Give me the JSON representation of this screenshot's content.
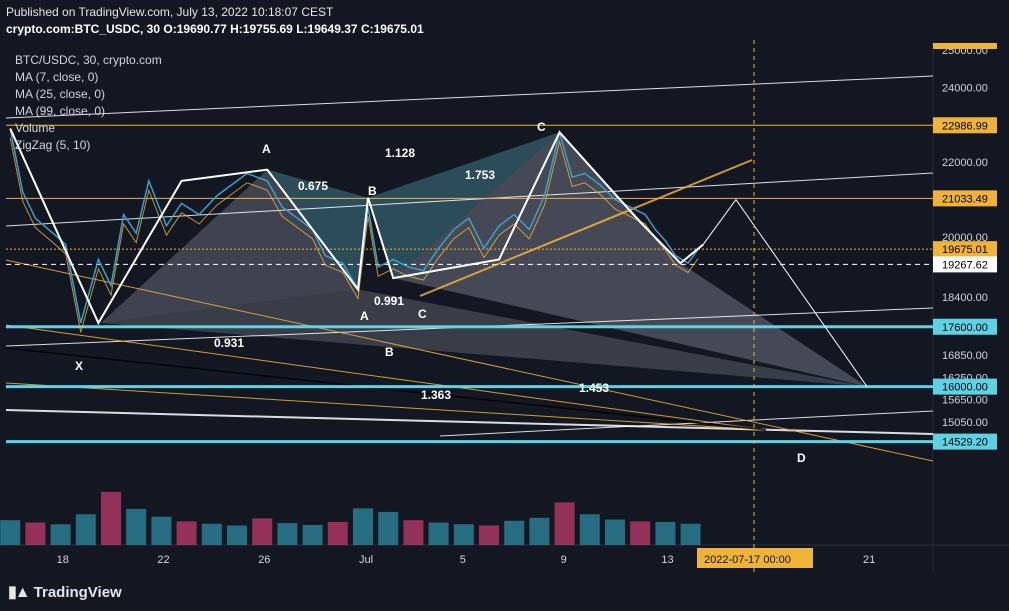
{
  "header": {
    "published": "Published on TradingView.com, July 13, 2022 10:18:07 CEST",
    "symbol_line_prefix": "crypto.com:BTC_USDC, 30",
    "ohlc": {
      "O": "19690.77",
      "H": "19755.69",
      "L": "19649.37",
      "C": "19675.01"
    }
  },
  "legend": {
    "title": "BTC/USDC, 30, crypto.com",
    "items": [
      "MA (7, close, 0)",
      "MA (25, close, 0)",
      "MA (99, close, 0)",
      "Volume",
      "ZigZag (5, 10)"
    ]
  },
  "footer": {
    "brand": "TradingView"
  },
  "colors": {
    "background": "#131722",
    "hline_orange": "#f0b33a",
    "hline_cyan": "#5ed1e5",
    "pattern_teal": "#3f7a86",
    "pattern_grey": "#8e95a3",
    "vol_up": "#2e8ba3",
    "vol_down": "#c23b6b",
    "date_label_bg": "#f0b33a"
  },
  "chart_data": {
    "type": "line",
    "title": "BTC/USDC, 30, crypto.com",
    "ylim": [
      14300,
      25300
    ],
    "price_axis_ticks": [
      25000,
      24000,
      22000,
      20000,
      18400,
      16850,
      16250,
      15650,
      15050
    ],
    "price_axis_labels": [
      "25000.00",
      "24000.00",
      "22000.00",
      "20000.00",
      "18400.00",
      "16850.00",
      "16250.00",
      "15650.00",
      "15050.00"
    ],
    "time_axis_labels": [
      "18",
      "22",
      "26",
      "Jul",
      "5",
      "9",
      "13",
      "2022-07-17   00:00",
      "21"
    ],
    "time_axis_days": [
      -12,
      -8,
      -4,
      0,
      4,
      8,
      12,
      16,
      20
    ],
    "last_price": 19675.01,
    "horizontal_levels": [
      {
        "price": 22986.99,
        "label": "22986.99",
        "color": "orange"
      },
      {
        "price": 21033.49,
        "label": "21033.49",
        "color": "orange"
      },
      {
        "price": 19675.01,
        "label": "19675.01",
        "color": "orange"
      },
      {
        "price": 19267.62,
        "label": "19267.62",
        "color": "white"
      },
      {
        "price": 17600.0,
        "label": "17600.00",
        "color": "cyan"
      },
      {
        "price": 16000.0,
        "label": "16000.00",
        "color": "cyan"
      },
      {
        "price": 14529.2,
        "label": "14529.20",
        "color": "cyan"
      }
    ],
    "price_series": {
      "name": "BTC/USDC close",
      "x_days": [
        -14,
        -13.5,
        -13,
        -12.3,
        -11.8,
        -11.2,
        -10.5,
        -10,
        -9.5,
        -9,
        -8.5,
        -7.8,
        -7.2,
        -6.5,
        -5.8,
        -5.2,
        -4.6,
        -3.8,
        -3.2,
        -2.6,
        -2.0,
        -1.5,
        -0.8,
        -0.2,
        0.2,
        0.6,
        1.2,
        1.8,
        2.4,
        3.0,
        3.6,
        4.2,
        4.8,
        5.4,
        6.0,
        6.6,
        7.2,
        7.8,
        8.3,
        8.8,
        9.4,
        10.0,
        10.6,
        11.2,
        11.6,
        12.0,
        12.4,
        12.9,
        13.3
      ],
      "y": [
        22900,
        21200,
        20500,
        20100,
        19800,
        17700,
        19400,
        18700,
        20600,
        20100,
        21500,
        20300,
        20900,
        20600,
        21100,
        21400,
        21700,
        21500,
        20800,
        20500,
        20200,
        19500,
        19300,
        18600,
        20800,
        19200,
        19400,
        19200,
        19100,
        19700,
        20200,
        20500,
        19700,
        20300,
        20600,
        20200,
        21100,
        22800,
        21600,
        21700,
        21400,
        21000,
        20800,
        20600,
        20200,
        19900,
        19500,
        19300,
        19675
      ]
    },
    "zigzag": {
      "x_days": [
        -14,
        -10.5,
        -7.2,
        -3.8,
        -0.2,
        0.2,
        1.2,
        5.4,
        7.8,
        11.0,
        12.6,
        13.5
      ],
      "y": [
        22900,
        17700,
        21500,
        21800,
        18600,
        21050,
        18900,
        19400,
        22800,
        20400,
        19300,
        19800
      ]
    },
    "projection": {
      "x_days": [
        13.5,
        14.8,
        20.0
      ],
      "y": [
        19800,
        21000,
        16000
      ]
    },
    "harmonic_points": [
      "X",
      "A",
      "B",
      "C",
      "D"
    ],
    "ratios": [
      "0.675",
      "1.753",
      "0.991",
      "0.931",
      "1.363",
      "1.453",
      "1.128"
    ],
    "volume": {
      "x_days": [
        -14,
        -13,
        -12,
        -11,
        -10,
        -9,
        -8,
        -7,
        -6,
        -5,
        -4,
        -3,
        -2,
        -1,
        0,
        1,
        2,
        3,
        4,
        5,
        6,
        7,
        8,
        9,
        10,
        11,
        12,
        13
      ],
      "values": [
        420,
        380,
        350,
        520,
        900,
        610,
        480,
        400,
        360,
        330,
        450,
        370,
        340,
        390,
        620,
        560,
        420,
        380,
        350,
        330,
        410,
        460,
        720,
        520,
        430,
        400,
        390,
        360
      ],
      "max": 1100
    }
  }
}
